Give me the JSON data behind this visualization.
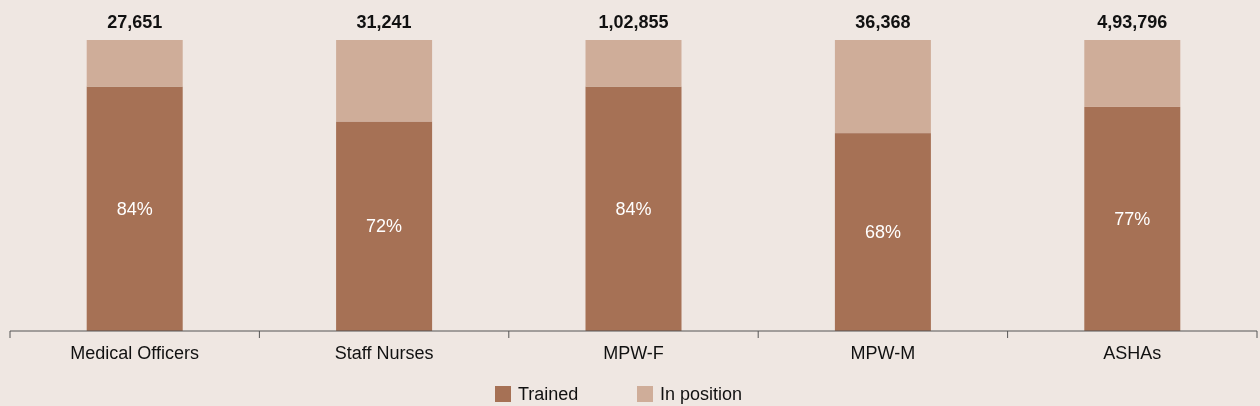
{
  "chart_data": {
    "type": "bar",
    "stacked": true,
    "categories": [
      "Medical Officers",
      "Staff Nurses",
      "MPW-F",
      "MPW-M",
      "ASHAs"
    ],
    "series": [
      {
        "name": "Trained",
        "color": "#a67155",
        "values": [
          84,
          72,
          84,
          68,
          77
        ],
        "value_labels": [
          "84%",
          "72%",
          "84%",
          "68%",
          "77%"
        ]
      },
      {
        "name": "In position",
        "color": "#cfad99",
        "values": [
          16,
          28,
          16,
          32,
          23
        ]
      }
    ],
    "ylim": [
      0,
      100
    ],
    "tick_labels": "x",
    "legend": "bottom",
    "annotations": [
      {
        "text": "27,651",
        "x": "Medical Officers",
        "y": 100
      },
      {
        "text": "31,241",
        "x": "Staff Nurses",
        "y": 100
      },
      {
        "text": "1,02,855",
        "x": "MPW-F",
        "y": 100
      },
      {
        "text": "36,368",
        "x": "MPW-M",
        "y": 100
      },
      {
        "text": "4,93,796",
        "x": "ASHAs",
        "y": 100
      }
    ]
  }
}
